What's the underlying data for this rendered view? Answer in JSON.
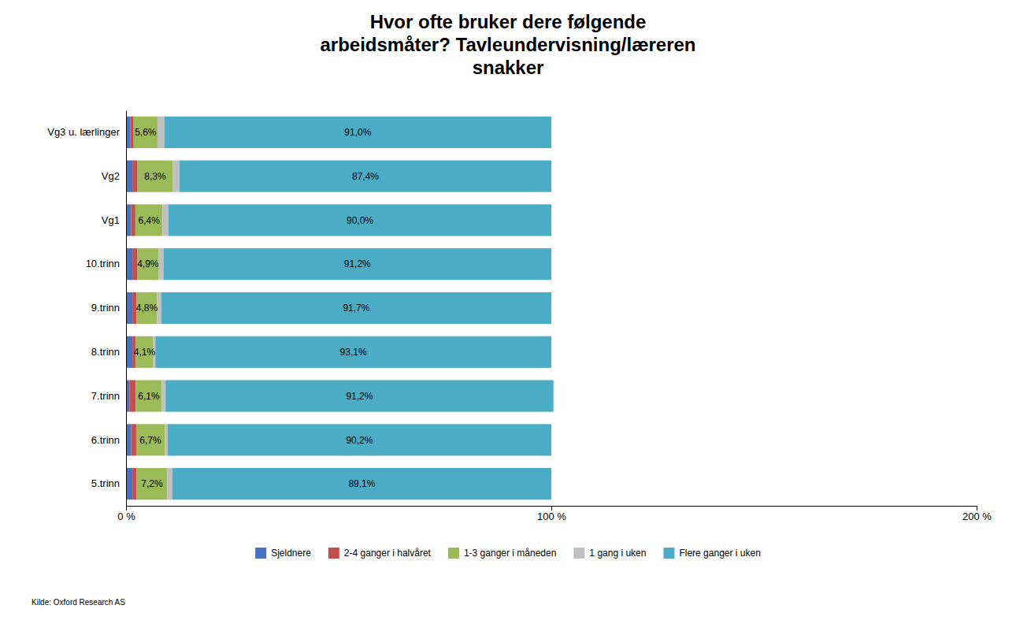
{
  "chart_data": {
    "type": "bar",
    "orientation": "horizontal",
    "stacked": true,
    "title": "Hvor ofte bruker dere følgende\narbeidsmåter? Tavleundervisning/læreren\nsnakker",
    "categories": [
      "Vg3 u. lærlinger",
      "Vg2",
      "Vg1",
      "10.trinn",
      "9.trinn",
      "8.trinn",
      "7.trinn",
      "6.trinn",
      "5.trinn"
    ],
    "series": [
      {
        "name": "Sjeldnere",
        "color": "#4472C4",
        "values": [
          1.0,
          1.5,
          1.2,
          1.5,
          1.5,
          1.5,
          0.8,
          1.2,
          1.5
        ]
      },
      {
        "name": "2-4 ganger i halvåret",
        "color": "#C0504D",
        "values": [
          0.8,
          1.2,
          1.0,
          1.2,
          1.0,
          0.8,
          1.5,
          1.2,
          1.0
        ]
      },
      {
        "name": "1-3 ganger i måneden",
        "color": "#9BBB59",
        "values": [
          5.6,
          8.3,
          6.4,
          4.9,
          4.8,
          4.1,
          6.1,
          6.7,
          7.2
        ],
        "value_labels": [
          "5,6%",
          "8,3%",
          "6,4%",
          "4,9%",
          "4,8%",
          "4,1%",
          "6,1%",
          "6,7%",
          "7,2%"
        ]
      },
      {
        "name": "1 gang i uken",
        "color": "#C0C0C0",
        "values": [
          1.6,
          1.6,
          1.4,
          1.2,
          1.0,
          0.5,
          0.9,
          0.7,
          1.2
        ]
      },
      {
        "name": "Flere ganger i uken",
        "color": "#4BACC6",
        "values": [
          91.0,
          87.4,
          90.0,
          91.2,
          91.7,
          93.1,
          91.2,
          90.2,
          89.1
        ],
        "value_labels": [
          "91,0%",
          "87,4%",
          "90,0%",
          "91,2%",
          "91,7%",
          "93,1%",
          "91,2%",
          "90,2%",
          "89,1%"
        ]
      }
    ],
    "xlim": [
      0,
      200
    ],
    "xticks": [
      {
        "value": 0,
        "label": "0 %"
      },
      {
        "value": 100,
        "label": "100 %"
      },
      {
        "value": 200,
        "label": "200 %"
      }
    ],
    "annotations": [
      "Kilde: Oxford Research AS"
    ]
  }
}
